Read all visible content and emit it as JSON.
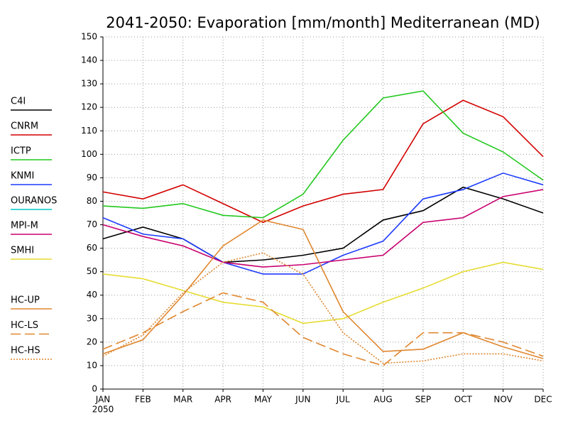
{
  "chart_data": {
    "type": "line",
    "title": "2041-2050: Evaporation [mm/month] Mediterranean (MD)",
    "categories": [
      "JAN",
      "FEB",
      "MAR",
      "APR",
      "MAY",
      "JUN",
      "JUL",
      "AUG",
      "SEP",
      "OCT",
      "NOV",
      "DEC"
    ],
    "x_sublabel": "2050",
    "ylim": [
      0,
      150
    ],
    "yticks": [
      0,
      10,
      20,
      30,
      40,
      50,
      60,
      70,
      80,
      90,
      100,
      110,
      120,
      130,
      140,
      150
    ],
    "grid": true,
    "series": [
      {
        "name": "C4I",
        "color": "#000000",
        "linestyle": "solid",
        "values": [
          64,
          69,
          64,
          54,
          55,
          57,
          60,
          72,
          76,
          86,
          81,
          75
        ]
      },
      {
        "name": "CNRM",
        "color": "#d20000",
        "linestyle": "solid",
        "values": [
          84,
          81,
          87,
          79,
          71,
          78,
          83,
          85,
          113,
          123,
          116,
          99
        ]
      },
      {
        "name": "ICTP",
        "color": "#22c81e",
        "linestyle": "solid",
        "values": [
          78,
          77,
          79,
          74,
          73,
          83,
          106,
          124,
          127,
          109,
          101,
          89
        ]
      },
      {
        "name": "KNMI",
        "color": "#1e3cff",
        "linestyle": "solid",
        "values": [
          73,
          66,
          64,
          54,
          49,
          49,
          57,
          63,
          81,
          85,
          92,
          87
        ]
      },
      {
        "name": "OURANOS",
        "color": "#00c8c8",
        "linestyle": "solid",
        "values": [
          null,
          null,
          null,
          null,
          null,
          null,
          null,
          null,
          null,
          null,
          null,
          null
        ]
      },
      {
        "name": "MPI-M",
        "color": "#c8006e",
        "linestyle": "solid",
        "values": [
          70,
          65,
          61,
          54,
          52,
          53,
          55,
          57,
          71,
          73,
          82,
          85
        ]
      },
      {
        "name": "SMHI",
        "color": "#e6dc32",
        "linestyle": "solid",
        "values": [
          49,
          47,
          42,
          37,
          35,
          28,
          30,
          37,
          43,
          50,
          54,
          51
        ]
      },
      {
        "name": "HC-UP",
        "color": "#e0872f",
        "linestyle": "solid",
        "values": [
          15,
          21,
          40,
          61,
          72,
          68,
          33,
          16,
          17,
          24,
          18,
          13
        ]
      },
      {
        "name": "HC-LS",
        "color": "#e0872f",
        "linestyle": "dashed",
        "values": [
          17,
          24,
          33,
          41,
          37,
          22,
          15,
          10,
          24,
          24,
          20,
          14
        ]
      },
      {
        "name": "HC-HS",
        "color": "#e0872f",
        "linestyle": "dotted",
        "values": [
          14,
          23,
          41,
          54,
          58,
          49,
          24,
          11,
          12,
          15,
          15,
          12
        ]
      }
    ]
  }
}
